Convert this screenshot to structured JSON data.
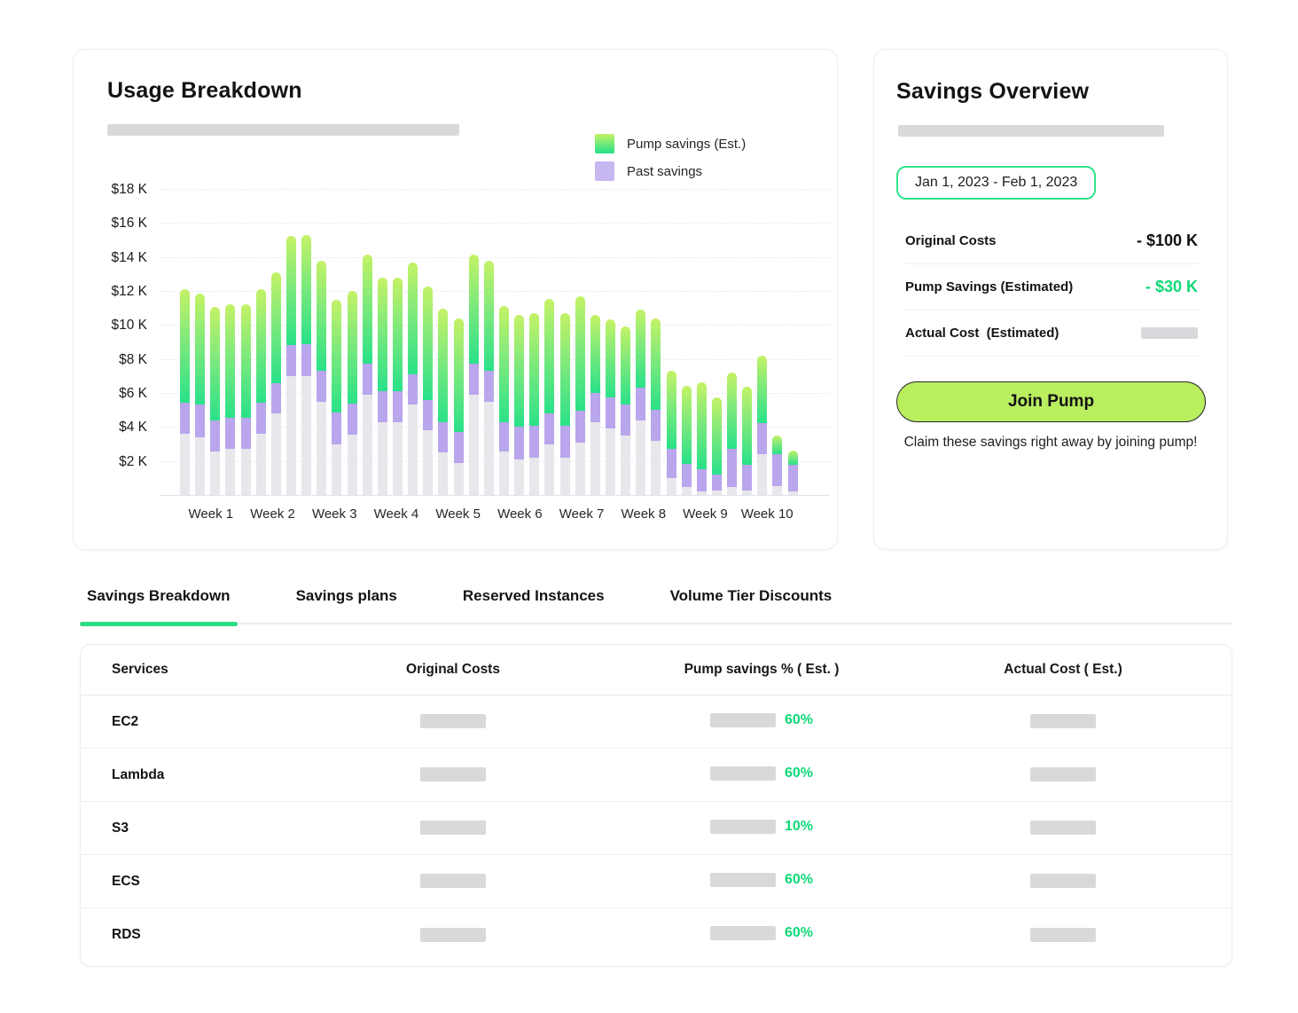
{
  "usage_card": {
    "title": "Usage Breakdown"
  },
  "chart_data": {
    "type": "bar",
    "stacked": true,
    "title": "Usage Breakdown",
    "unit": "$ thousands (K)",
    "ylim": [
      0,
      18
    ],
    "y_tick_labels": [
      "$18 K",
      "$16 K",
      "$14 K",
      "$12 K",
      "$10 K",
      "$8 K",
      "$6 K",
      "$4 K",
      "$2 K"
    ],
    "grid": "horizontal",
    "legend_position": "top-right",
    "legend": [
      {
        "label": "Pump savings (Est.)",
        "swatch": "pump"
      },
      {
        "label": "Past savings",
        "swatch": "past"
      }
    ],
    "categories": [
      "Week 1",
      "Week 2",
      "Week 3",
      "Week 4",
      "Week 5",
      "Week 6",
      "Week 7",
      "Week 8",
      "Week 9",
      "Week 10"
    ],
    "series": [
      {
        "name": "Base cost (unlabeled gray)",
        "key": "base",
        "values": [
          3.6,
          3.4,
          2.55,
          2.7,
          2.7,
          3.6,
          4.8,
          7.0,
          7.0,
          5.5,
          3.0,
          3.55,
          5.9,
          4.3,
          4.3,
          5.3,
          3.8,
          2.5,
          1.9,
          5.9,
          5.5,
          2.55,
          2.1,
          2.2,
          2.95,
          2.2,
          3.1,
          4.3,
          3.9,
          3.5,
          4.4,
          3.2,
          1.0,
          0.45,
          0.2,
          0.25,
          0.45,
          0.25,
          2.4,
          0.5,
          0.2
        ]
      },
      {
        "name": "Past savings",
        "key": "past",
        "values": [
          1.85,
          1.9,
          1.85,
          1.85,
          1.85,
          1.85,
          1.8,
          1.8,
          1.85,
          1.8,
          1.85,
          1.85,
          1.8,
          1.8,
          1.8,
          1.8,
          1.8,
          1.8,
          1.8,
          1.8,
          1.8,
          1.75,
          1.9,
          1.85,
          1.85,
          1.85,
          1.85,
          1.7,
          1.85,
          1.8,
          1.9,
          1.8,
          1.7,
          1.4,
          1.3,
          0.95,
          2.25,
          1.5,
          1.85,
          1.9,
          1.6
        ]
      },
      {
        "name": "Pump savings (Est.)",
        "key": "pump",
        "values": [
          6.65,
          6.55,
          6.65,
          6.65,
          6.65,
          6.65,
          6.5,
          6.45,
          6.45,
          6.5,
          6.65,
          6.6,
          6.45,
          6.7,
          6.7,
          6.55,
          6.65,
          6.65,
          6.7,
          6.45,
          6.5,
          6.8,
          6.6,
          6.65,
          6.75,
          6.65,
          6.75,
          4.6,
          4.6,
          4.6,
          4.6,
          5.4,
          4.6,
          4.55,
          5.15,
          4.55,
          4.5,
          4.6,
          3.95,
          1.1,
          0.8
        ]
      }
    ]
  },
  "savings_card": {
    "title": "Savings Overview",
    "date_range": "Jan 1, 2023 - Feb 1, 2023",
    "rows": [
      {
        "label": "Original Costs",
        "value": "- $100 K",
        "value_style": "dark"
      },
      {
        "label": "Pump Savings (Estimated)",
        "value": "- $30 K",
        "value_style": "green"
      },
      {
        "label": "Actual Cost  (Estimated)",
        "value": "",
        "value_style": "placeholder"
      }
    ],
    "cta_label": "Join Pump",
    "caption": "Claim these savings right away by joining pump!"
  },
  "tabs": [
    {
      "label": "Savings Breakdown",
      "active": true
    },
    {
      "label": "Savings plans",
      "active": false
    },
    {
      "label": "Reserved Instances",
      "active": false
    },
    {
      "label": "Volume Tier Discounts",
      "active": false
    }
  ],
  "table": {
    "headers": [
      "Services",
      "Original Costs",
      "Pump savings % ( Est. )",
      "Actual Cost ( Est.)"
    ],
    "rows": [
      {
        "service": "EC2",
        "pump_savings_pct": "60%"
      },
      {
        "service": "Lambda",
        "pump_savings_pct": "60%"
      },
      {
        "service": "S3",
        "pump_savings_pct": "10%"
      },
      {
        "service": "ECS",
        "pump_savings_pct": "60%"
      },
      {
        "service": "RDS",
        "pump_savings_pct": "60%"
      }
    ]
  },
  "colors": {
    "accent_green": "#2cdc86",
    "pump_top": "#c4f266",
    "pump_bottom": "#2ae189",
    "past_purple": "#b9a6ec",
    "legend_past": "#c6b7f1",
    "base_gray": "#e8e7ec",
    "green_text": "#0ed977",
    "cta_bg": "#b9ee5f",
    "chip_border": "#2fe28c",
    "placeholder_gray": "#d9d8db"
  }
}
